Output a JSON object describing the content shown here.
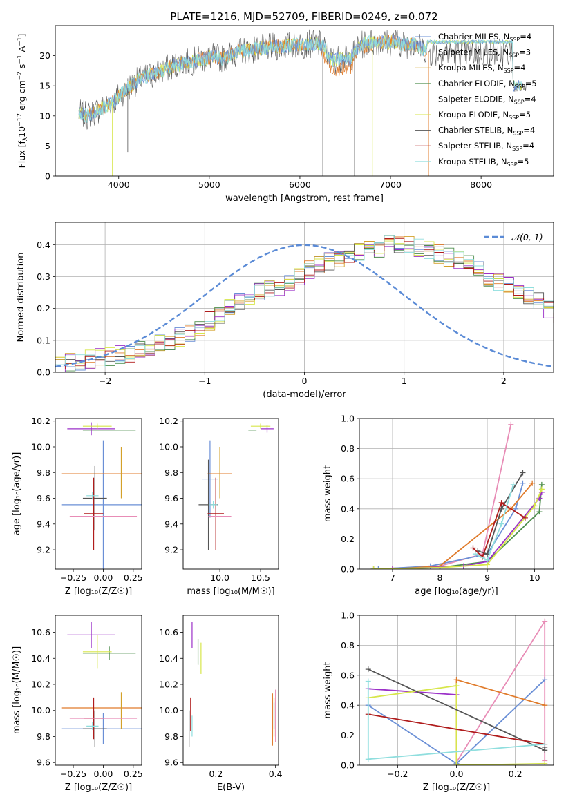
{
  "figure": {
    "title": "PLATE=1216, MJD=52709, FIBERID=0249, z=0.072"
  },
  "model_colors": {
    "Chabrier MILES": "#6a8fd6",
    "Salpeter MILES": "#e07b2b",
    "Kroupa MILES": "#d4a12a",
    "Chabrier ELODIE": "#4f8f4f",
    "Salpeter ELODIE": "#9b30c8",
    "Kroupa ELODIE": "#d7e64a",
    "Chabrier STELIB": "#555555",
    "Salpeter STELIB": "#b01c1c",
    "Kroupa STELIB": "#8fdede",
    "extra": "#e88cb6"
  },
  "chart_data": [
    {
      "type": "line",
      "id": "spectrum",
      "title": "PLATE=1216, MJD=52709, FIBERID=0249, z=0.072",
      "xlabel": "wavelength [Angstrom, rest frame]",
      "ylabel_prefix": "Flux [f",
      "ylabel_sub": "λ",
      "ylabel_mid": "10",
      "ylabel_sup1": "−17",
      "ylabel_mid2": " erg cm",
      "ylabel_sup2": "−2",
      "ylabel_mid3": " s",
      "ylabel_sup3": "−1",
      "ylabel_end": " A",
      "ylabel_sup4": "−1",
      "ylabel_close": "]",
      "xlim": [
        3300,
        8800
      ],
      "ylim": [
        0,
        25
      ],
      "xticks": [
        4000,
        5000,
        6000,
        7000,
        8000
      ],
      "yticks": [
        0,
        5,
        10,
        15,
        20
      ],
      "continuum": {
        "wavelength": [
          3550,
          3650,
          3750,
          3850,
          3950,
          4050,
          4150,
          4250,
          4350,
          4450,
          4550,
          4650,
          4750,
          4850,
          4950,
          5050,
          5150,
          5250,
          5350,
          5450,
          5550,
          5650,
          5750,
          5850,
          5950,
          6050,
          6150,
          6250,
          6350,
          6450,
          6550,
          6650,
          6750,
          6850,
          6950,
          7050,
          7150,
          7250,
          7350,
          7450
        ],
        "flux": [
          10.5,
          10.0,
          10.8,
          11.5,
          12.5,
          14.0,
          15.2,
          16.2,
          16.8,
          17.2,
          18.0,
          18.5,
          18.8,
          19.2,
          19.5,
          19.8,
          19.5,
          20.3,
          20.8,
          21.0,
          21.2,
          21.3,
          21.5,
          21.6,
          21.8,
          21.9,
          22.0,
          21.8,
          19.2,
          19.5,
          19.5,
          21.5,
          22.2,
          22.3,
          22.2,
          22.3,
          21.8,
          22.0,
          21.2,
          20.5
        ]
      },
      "legend_position": "right",
      "legend": [
        {
          "label": "Chabrier MILES, N",
          "sub": "SSP",
          "eq": "=4"
        },
        {
          "label": "Salpeter MILES, N",
          "sub": "SSP",
          "eq": "=3"
        },
        {
          "label": "Kroupa MILES, N",
          "sub": "SSP",
          "eq": "=4"
        },
        {
          "label": "Chabrier ELODIE, N",
          "sub": "SSP",
          "eq": "=5"
        },
        {
          "label": "Salpeter ELODIE, N",
          "sub": "SSP",
          "eq": "=4"
        },
        {
          "label": "Kroupa ELODIE, N",
          "sub": "SSP",
          "eq": "=5"
        },
        {
          "label": "Chabrier STELIB, N",
          "sub": "SSP",
          "eq": "=4"
        },
        {
          "label": "Salpeter STELIB, N",
          "sub": "SSP",
          "eq": "=4"
        },
        {
          "label": "Kroupa STELIB, N",
          "sub": "SSP",
          "eq": "=5"
        }
      ]
    },
    {
      "type": "area",
      "id": "residuals",
      "xlabel": "(data-model)/error",
      "ylabel": "Normed distribution",
      "xlim": [
        -2.5,
        2.5
      ],
      "ylim": [
        0,
        0.47
      ],
      "xticks": [
        -2,
        -1,
        0,
        1,
        2
      ],
      "yticks": [
        0.0,
        0.1,
        0.2,
        0.3,
        0.4
      ],
      "grid": true,
      "legend": "𝒩(0, 1)",
      "legend_position": "top-right",
      "bin_width": 0.1,
      "bin_start": -2.5,
      "envelope": [
        0.02,
        0.03,
        0.035,
        0.04,
        0.045,
        0.05,
        0.055,
        0.06,
        0.07,
        0.08,
        0.09,
        0.1,
        0.11,
        0.12,
        0.14,
        0.16,
        0.18,
        0.2,
        0.22,
        0.24,
        0.25,
        0.26,
        0.27,
        0.28,
        0.3,
        0.32,
        0.34,
        0.35,
        0.36,
        0.37,
        0.38,
        0.39,
        0.39,
        0.4,
        0.4,
        0.4,
        0.39,
        0.38,
        0.37,
        0.36,
        0.35,
        0.34,
        0.32,
        0.3,
        0.28,
        0.27,
        0.26,
        0.24,
        0.22,
        0.2,
        0.18,
        0.16,
        0.14,
        0.12,
        0.11,
        0.1,
        0.09,
        0.08,
        0.07,
        0.06,
        0.055,
        0.05,
        0.045,
        0.04,
        0.035,
        0.03,
        0.03,
        0.025,
        0.025,
        0.02
      ]
    },
    {
      "type": "scatter",
      "id": "age-vs-Z",
      "xlabel": "Z [log₁₀(Z/Z☉)]",
      "ylabel": "age  [log₁₀(age/yr)]",
      "xlim": [
        -0.4,
        0.32
      ],
      "ylim": [
        9.05,
        10.22
      ],
      "xticks": [
        -0.25,
        0.0,
        0.25
      ],
      "xticklabels": [
        "−0.25",
        "0.00",
        "0.25"
      ],
      "yticks": [
        9.2,
        9.4,
        9.6,
        9.8,
        10.0,
        10.2
      ],
      "points": [
        {
          "model": "Chabrier MILES",
          "x": 0.0,
          "y": 9.55,
          "xerr": 0.35,
          "yerr": 0.5
        },
        {
          "model": "Salpeter MILES",
          "x": 0.0,
          "y": 9.79,
          "xerr": 0.35,
          "yerr": 0.0
        },
        {
          "model": "Kroupa MILES",
          "x": 0.15,
          "y": 9.8,
          "xerr": 0.0,
          "yerr": 0.2
        },
        {
          "model": "Chabrier ELODIE",
          "x": 0.05,
          "y": 10.13,
          "xerr": 0.22,
          "yerr": 0.0
        },
        {
          "model": "Salpeter ELODIE",
          "x": -0.1,
          "y": 10.14,
          "xerr": 0.2,
          "yerr": 0.05
        },
        {
          "model": "Kroupa ELODIE",
          "x": -0.05,
          "y": 10.16,
          "xerr": 0.12,
          "yerr": 0.02
        },
        {
          "model": "Chabrier STELIB",
          "x": -0.07,
          "y": 9.6,
          "xerr": 0.1,
          "yerr": 0.25
        },
        {
          "model": "Salpeter STELIB",
          "x": -0.08,
          "y": 9.48,
          "xerr": 0.08,
          "yerr": 0.28
        },
        {
          "model": "Kroupa STELIB",
          "x": -0.09,
          "y": 9.62,
          "xerr": 0.05,
          "yerr": 0.03
        },
        {
          "model": "extra",
          "x": 0.0,
          "y": 9.46,
          "xerr": 0.28,
          "yerr": 0.0
        }
      ]
    },
    {
      "type": "scatter",
      "id": "age-vs-mass",
      "xlabel": "mass [log₁₀(M/M☉)]",
      "ylabel": "",
      "xlim": [
        9.55,
        10.72
      ],
      "ylim": [
        9.05,
        10.22
      ],
      "xticks": [
        10.0,
        10.5
      ],
      "xticklabels": [
        "10.0",
        "10.5"
      ],
      "yticks": [
        9.2,
        9.4,
        9.6,
        9.8,
        10.0,
        10.2
      ],
      "points": [
        {
          "model": "Chabrier MILES",
          "x": 9.88,
          "y": 9.75,
          "xerr": 0.1,
          "yerr": 0.3
        },
        {
          "model": "Salpeter MILES",
          "x": 10.0,
          "y": 9.79,
          "xerr": 0.15,
          "yerr": 0.0
        },
        {
          "model": "Kroupa MILES",
          "x": 10.0,
          "y": 9.8,
          "xerr": 0.0,
          "yerr": 0.2
        },
        {
          "model": "Chabrier ELODIE",
          "x": 10.4,
          "y": 10.13,
          "xerr": 0.05,
          "yerr": 0.0
        },
        {
          "model": "Salpeter ELODIE",
          "x": 10.58,
          "y": 10.14,
          "xerr": 0.08,
          "yerr": 0.03
        },
        {
          "model": "Kroupa ELODIE",
          "x": 10.5,
          "y": 10.16,
          "xerr": 0.12,
          "yerr": 0.02
        },
        {
          "model": "Chabrier STELIB",
          "x": 9.86,
          "y": 9.55,
          "xerr": 0.12,
          "yerr": 0.35
        },
        {
          "model": "Salpeter STELIB",
          "x": 9.95,
          "y": 9.48,
          "xerr": 0.1,
          "yerr": 0.28
        },
        {
          "model": "Kroupa STELIB",
          "x": 9.92,
          "y": 9.55,
          "xerr": 0.05,
          "yerr": 0.03
        },
        {
          "model": "extra",
          "x": 10.0,
          "y": 9.46,
          "xerr": 0.14,
          "yerr": 0.0
        }
      ]
    },
    {
      "type": "line",
      "id": "massweight-vs-age",
      "xlabel": "age  [log₁₀(age/yr)]",
      "ylabel": "mass weight",
      "xlim": [
        6.3,
        10.4
      ],
      "ylim": [
        0,
        1
      ],
      "xticks": [
        7,
        8,
        9,
        10
      ],
      "yticks": [
        0.0,
        0.2,
        0.4,
        0.6,
        0.8,
        1.0
      ],
      "grid": true,
      "series": [
        {
          "model": "extra",
          "x": [
            6.6,
            8.0,
            8.9,
            9.5
          ],
          "y": [
            0.0,
            0.02,
            0.1,
            0.96
          ]
        },
        {
          "model": "Chabrier MILES",
          "x": [
            6.7,
            7.8,
            9.0,
            9.6,
            9.75
          ],
          "y": [
            0.0,
            0.02,
            0.1,
            0.4,
            0.57
          ]
        },
        {
          "model": "Salpeter MILES",
          "x": [
            7.0,
            8.0,
            9.5,
            9.95
          ],
          "y": [
            0.0,
            0.02,
            0.4,
            0.57
          ]
        },
        {
          "model": "Chabrier ELODIE",
          "x": [
            6.6,
            8.0,
            9.0,
            10.1,
            10.15
          ],
          "y": [
            0.0,
            0.01,
            0.05,
            0.38,
            0.56
          ]
        },
        {
          "model": "Salpeter ELODIE",
          "x": [
            7.0,
            8.5,
            9.0,
            10.1,
            10.15
          ],
          "y": [
            0.0,
            0.02,
            0.05,
            0.47,
            0.51
          ]
        },
        {
          "model": "Kroupa ELODIE",
          "x": [
            6.6,
            8.0,
            9.0,
            10.0,
            10.15
          ],
          "y": [
            0.0,
            0.01,
            0.03,
            0.42,
            0.53
          ]
        },
        {
          "model": "Chabrier STELIB",
          "x": [
            8.8,
            9.0,
            9.3,
            9.75
          ],
          "y": [
            0.12,
            0.1,
            0.4,
            0.64
          ]
        },
        {
          "model": "Salpeter STELIB",
          "x": [
            8.7,
            8.9,
            9.3,
            9.8
          ],
          "y": [
            0.14,
            0.08,
            0.44,
            0.34
          ]
        },
        {
          "model": "Kroupa STELIB",
          "x": [
            8.75,
            9.0,
            9.3,
            9.55
          ],
          "y": [
            0.1,
            0.06,
            0.3,
            0.56
          ]
        }
      ]
    },
    {
      "type": "scatter",
      "id": "mass-vs-Z",
      "xlabel": "Z [log₁₀(Z/Z☉)]",
      "ylabel": "mass [log₁₀(M/M☉)]",
      "xlim": [
        -0.4,
        0.32
      ],
      "ylim": [
        9.58,
        10.73
      ],
      "xticks": [
        -0.25,
        0.0,
        0.25
      ],
      "xticklabels": [
        "−0.25",
        "0.00",
        "0.25"
      ],
      "yticks": [
        9.6,
        9.8,
        10.0,
        10.2,
        10.4,
        10.6
      ],
      "points": [
        {
          "model": "Chabrier MILES",
          "x": 0.0,
          "y": 9.86,
          "xerr": 0.35,
          "yerr": 0.12
        },
        {
          "model": "Salpeter MILES",
          "x": 0.0,
          "y": 10.02,
          "xerr": 0.35,
          "yerr": 0.0
        },
        {
          "model": "Kroupa MILES",
          "x": 0.15,
          "y": 10.0,
          "xerr": 0.0,
          "yerr": 0.14
        },
        {
          "model": "Chabrier ELODIE",
          "x": 0.05,
          "y": 10.44,
          "xerr": 0.22,
          "yerr": 0.05
        },
        {
          "model": "Salpeter ELODIE",
          "x": -0.1,
          "y": 10.58,
          "xerr": 0.2,
          "yerr": 0.1
        },
        {
          "model": "Kroupa ELODIE",
          "x": -0.05,
          "y": 10.45,
          "xerr": 0.12,
          "yerr": 0.13
        },
        {
          "model": "Chabrier STELIB",
          "x": -0.07,
          "y": 9.86,
          "xerr": 0.1,
          "yerr": 0.14
        },
        {
          "model": "Salpeter STELIB",
          "x": -0.08,
          "y": 9.94,
          "xerr": 0.08,
          "yerr": 0.16
        },
        {
          "model": "Kroupa STELIB",
          "x": -0.09,
          "y": 9.88,
          "xerr": 0.05,
          "yerr": 0.03
        },
        {
          "model": "extra",
          "x": 0.0,
          "y": 9.94,
          "xerr": 0.28,
          "yerr": 0.0
        }
      ]
    },
    {
      "type": "scatter",
      "id": "mass-vs-ebv",
      "xlabel": "E(B-V)",
      "ylabel": "",
      "xlim": [
        0.09,
        0.41
      ],
      "ylim": [
        9.58,
        10.73
      ],
      "xticks": [
        0.2,
        0.4
      ],
      "xticklabels": [
        "0.2",
        "0.4"
      ],
      "yticks": [
        9.6,
        9.8,
        10.0,
        10.2,
        10.4,
        10.6
      ],
      "points": [
        {
          "model": "Chabrier MILES",
          "x": 0.395,
          "y": 9.96,
          "xerr": 0.0,
          "yerr": 0.1
        },
        {
          "model": "Salpeter MILES",
          "x": 0.39,
          "y": 9.93,
          "xerr": 0.0,
          "yerr": 0.2
        },
        {
          "model": "Kroupa MILES",
          "x": 0.395,
          "y": 9.95,
          "xerr": 0.0,
          "yerr": 0.15
        },
        {
          "model": "Chabrier ELODIE",
          "x": 0.14,
          "y": 10.45,
          "xerr": 0.0,
          "yerr": 0.1
        },
        {
          "model": "Salpeter ELODIE",
          "x": 0.12,
          "y": 10.58,
          "xerr": 0.0,
          "yerr": 0.1
        },
        {
          "model": "Kroupa ELODIE",
          "x": 0.15,
          "y": 10.4,
          "xerr": 0.0,
          "yerr": 0.12
        },
        {
          "model": "Chabrier STELIB",
          "x": 0.11,
          "y": 9.86,
          "xerr": 0.0,
          "yerr": 0.14
        },
        {
          "model": "Salpeter STELIB",
          "x": 0.115,
          "y": 9.97,
          "xerr": 0.0,
          "yerr": 0.13
        },
        {
          "model": "Kroupa STELIB",
          "x": 0.12,
          "y": 9.88,
          "xerr": 0.0,
          "yerr": 0.08
        },
        {
          "model": "extra",
          "x": 0.4,
          "y": 9.96,
          "xerr": 0.0,
          "yerr": 0.2
        }
      ]
    },
    {
      "type": "line",
      "id": "massweight-vs-Z",
      "xlabel": "Z [log₁₀(Z/Z☉)]",
      "ylabel": "mass weight",
      "xlim": [
        -0.33,
        0.33
      ],
      "ylim": [
        0,
        1
      ],
      "xticks": [
        -0.2,
        0.0,
        0.2
      ],
      "xticklabels": [
        "−0.2",
        "0.0",
        "0.2"
      ],
      "yticks": [
        0.0,
        0.2,
        0.4,
        0.6,
        0.8,
        1.0
      ],
      "grid": true,
      "series": [
        {
          "model": "extra",
          "x": [
            0.0,
            0.3,
            0.3
          ],
          "y": [
            0.02,
            0.96,
            0.03
          ]
        },
        {
          "model": "Chabrier MILES",
          "x": [
            -0.3,
            0.0,
            0.3
          ],
          "y": [
            0.4,
            0.01,
            0.57
          ]
        },
        {
          "model": "Salpeter MILES",
          "x": [
            0.0,
            0.0,
            0.3
          ],
          "y": [
            0.0,
            0.57,
            0.4
          ]
        },
        {
          "model": "Salpeter ELODIE",
          "x": [
            -0.3,
            0.0
          ],
          "y": [
            0.51,
            0.47
          ]
        },
        {
          "model": "Kroupa ELODIE",
          "x": [
            -0.3,
            0.0,
            0.0,
            0.3
          ],
          "y": [
            0.45,
            0.53,
            0.0,
            0.01
          ]
        },
        {
          "model": "Chabrier STELIB",
          "x": [
            -0.3,
            0.3,
            0.3
          ],
          "y": [
            0.64,
            0.1,
            0.12
          ]
        },
        {
          "model": "Salpeter STELIB",
          "x": [
            -0.3,
            0.3
          ],
          "y": [
            0.34,
            0.14
          ]
        },
        {
          "model": "Kroupa STELIB",
          "x": [
            -0.3,
            -0.3,
            0.3
          ],
          "y": [
            0.56,
            0.04,
            0.14
          ]
        }
      ]
    }
  ]
}
